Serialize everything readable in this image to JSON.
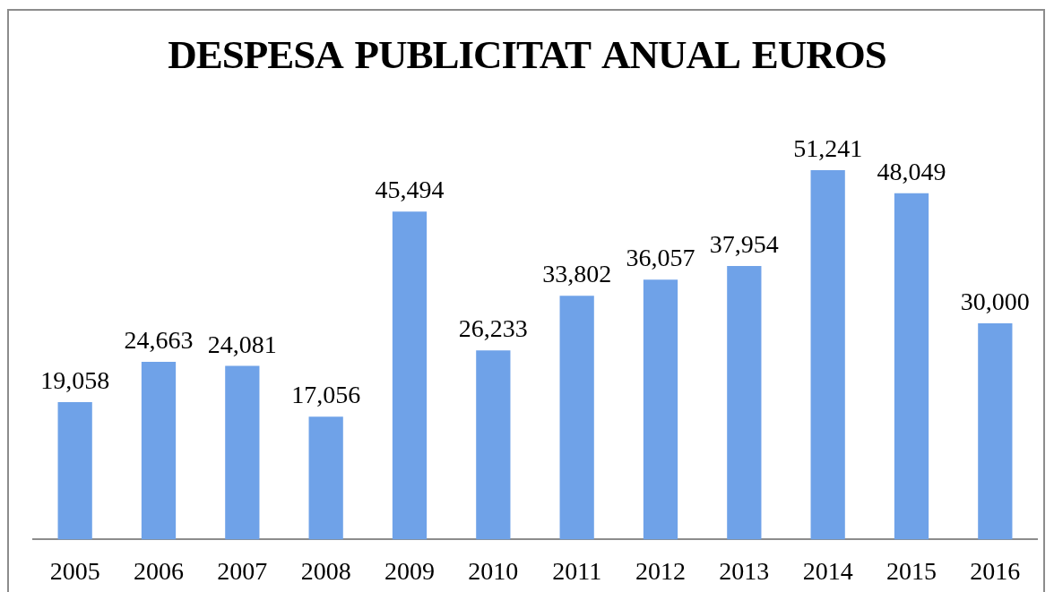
{
  "chart_data": {
    "type": "bar",
    "title": "DESPESA PUBLICITAT ANUAL EUROS",
    "categories": [
      "2005",
      "2006",
      "2007",
      "2008",
      "2009",
      "2010",
      "2011",
      "2012",
      "2013",
      "2014",
      "2015",
      "2016"
    ],
    "values": [
      19058,
      24663,
      24081,
      17056,
      45494,
      26233,
      33802,
      36057,
      37954,
      51241,
      48049,
      30000
    ],
    "value_labels": [
      "19,058",
      "24,663",
      "24,081",
      "17,056",
      "45,494",
      "26,233",
      "33,802",
      "36,057",
      "37,954",
      "51,241",
      "48,049",
      "30,000"
    ],
    "color": "#6fa2e8",
    "grid": false,
    "legend": false
  }
}
